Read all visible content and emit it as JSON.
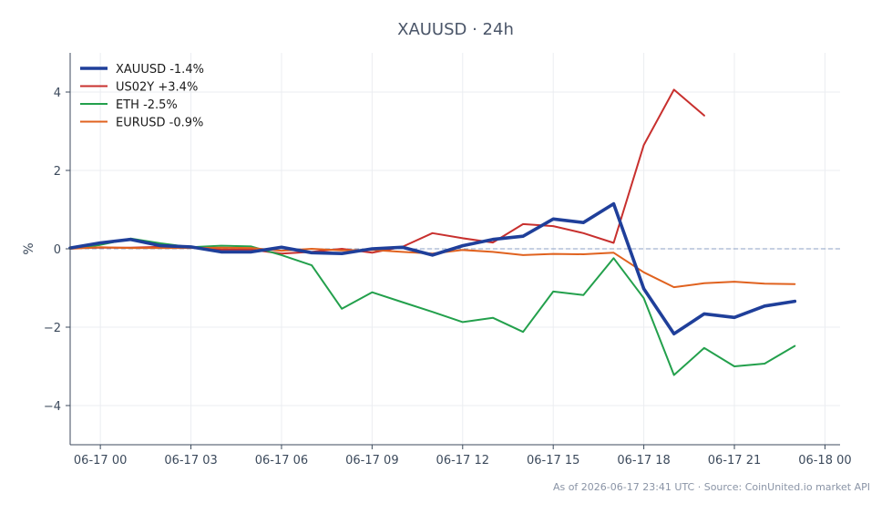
{
  "chart_data": {
    "type": "line",
    "title": "XAUUSD · 24h",
    "xlabel": "",
    "ylabel": "%",
    "ylim": [
      -5,
      5
    ],
    "xlim": [
      "2026-06-16T23:00",
      "2026-06-18T00:30"
    ],
    "x_ticks": [
      "06-17 00",
      "06-17 03",
      "06-17 06",
      "06-17 09",
      "06-17 12",
      "06-17 15",
      "06-17 18",
      "06-17 21",
      "06-18 00"
    ],
    "y_ticks": [
      "4",
      "2",
      "0",
      "−2",
      "−4"
    ],
    "y_tick_values": [
      4,
      2,
      0,
      -2,
      -4
    ],
    "grid": true,
    "legend_position": "top-left",
    "reference_line": {
      "y": 0,
      "style": "dashed"
    },
    "series": [
      {
        "name": "XAUUSD -1.4%",
        "color": "#1f3f9a",
        "emphasis": true,
        "points": [
          [
            "2026-06-16T23:00",
            0.02
          ],
          [
            "2026-06-17T00:00",
            0.15
          ],
          [
            "2026-06-17T01:00",
            0.24
          ],
          [
            "2026-06-17T02:00",
            0.08
          ],
          [
            "2026-06-17T03:00",
            0.05
          ],
          [
            "2026-06-17T04:00",
            -0.08
          ],
          [
            "2026-06-17T05:00",
            -0.08
          ],
          [
            "2026-06-17T06:00",
            0.04
          ],
          [
            "2026-06-17T07:00",
            -0.1
          ],
          [
            "2026-06-17T08:00",
            -0.12
          ],
          [
            "2026-06-17T09:00",
            0.0
          ],
          [
            "2026-06-17T10:00",
            0.04
          ],
          [
            "2026-06-17T11:00",
            -0.16
          ],
          [
            "2026-06-17T12:00",
            0.08
          ],
          [
            "2026-06-17T13:00",
            0.24
          ],
          [
            "2026-06-17T14:00",
            0.32
          ],
          [
            "2026-06-17T15:00",
            0.76
          ],
          [
            "2026-06-17T16:00",
            0.67
          ],
          [
            "2026-06-17T17:00",
            1.15
          ],
          [
            "2026-06-17T18:00",
            -1.02
          ],
          [
            "2026-06-17T19:00",
            -2.17
          ],
          [
            "2026-06-17T20:00",
            -1.66
          ],
          [
            "2026-06-17T21:00",
            -1.75
          ],
          [
            "2026-06-17T22:00",
            -1.46
          ],
          [
            "2026-06-17T23:00",
            -1.34
          ]
        ]
      },
      {
        "name": "US02Y +3.4%",
        "color": "#c8302e",
        "points": [
          [
            "2026-06-16T23:00",
            0.02
          ],
          [
            "2026-06-17T00:00",
            0.03
          ],
          [
            "2026-06-17T01:00",
            0.03
          ],
          [
            "2026-06-17T02:00",
            0.05
          ],
          [
            "2026-06-17T03:00",
            0.03
          ],
          [
            "2026-06-17T04:00",
            -0.02
          ],
          [
            "2026-06-17T05:00",
            -0.02
          ],
          [
            "2026-06-17T06:00",
            -0.12
          ],
          [
            "2026-06-17T07:00",
            -0.08
          ],
          [
            "2026-06-17T08:00",
            0.0
          ],
          [
            "2026-06-17T09:00",
            -0.1
          ],
          [
            "2026-06-17T10:00",
            0.05
          ],
          [
            "2026-06-17T11:00",
            0.4
          ],
          [
            "2026-06-17T12:00",
            0.27
          ],
          [
            "2026-06-17T13:00",
            0.16
          ],
          [
            "2026-06-17T14:00",
            0.63
          ],
          [
            "2026-06-17T15:00",
            0.58
          ],
          [
            "2026-06-17T16:00",
            0.4
          ],
          [
            "2026-06-17T17:00",
            0.15
          ],
          [
            "2026-06-17T18:00",
            2.65
          ],
          [
            "2026-06-17T19:00",
            4.06
          ],
          [
            "2026-06-17T20:00",
            3.4
          ]
        ]
      },
      {
        "name": "ETH -2.5%",
        "color": "#23a04c",
        "points": [
          [
            "2026-06-16T23:00",
            0.0
          ],
          [
            "2026-06-17T00:00",
            0.1
          ],
          [
            "2026-06-17T01:00",
            0.26
          ],
          [
            "2026-06-17T02:00",
            0.14
          ],
          [
            "2026-06-17T03:00",
            0.04
          ],
          [
            "2026-06-17T04:00",
            0.08
          ],
          [
            "2026-06-17T05:00",
            0.06
          ],
          [
            "2026-06-17T06:00",
            -0.16
          ],
          [
            "2026-06-17T07:00",
            -0.42
          ],
          [
            "2026-06-17T08:00",
            -1.53
          ],
          [
            "2026-06-17T09:00",
            -1.11
          ],
          [
            "2026-06-17T10:00",
            -1.36
          ],
          [
            "2026-06-17T11:00",
            -1.61
          ],
          [
            "2026-06-17T12:00",
            -1.87
          ],
          [
            "2026-06-17T13:00",
            -1.76
          ],
          [
            "2026-06-17T14:00",
            -2.12
          ],
          [
            "2026-06-17T15:00",
            -1.09
          ],
          [
            "2026-06-17T16:00",
            -1.18
          ],
          [
            "2026-06-17T17:00",
            -0.24
          ],
          [
            "2026-06-17T18:00",
            -1.26
          ],
          [
            "2026-06-17T19:00",
            -3.22
          ],
          [
            "2026-06-17T20:00",
            -2.53
          ],
          [
            "2026-06-17T21:00",
            -3.0
          ],
          [
            "2026-06-17T22:00",
            -2.93
          ],
          [
            "2026-06-17T23:00",
            -2.48
          ]
        ]
      },
      {
        "name": "EURUSD -0.9%",
        "color": "#e0621f",
        "points": [
          [
            "2026-06-16T23:00",
            0.0
          ],
          [
            "2026-06-17T00:00",
            0.04
          ],
          [
            "2026-06-17T01:00",
            0.02
          ],
          [
            "2026-06-17T02:00",
            0.02
          ],
          [
            "2026-06-17T03:00",
            0.02
          ],
          [
            "2026-06-17T04:00",
            0.03
          ],
          [
            "2026-06-17T05:00",
            0.02
          ],
          [
            "2026-06-17T06:00",
            -0.05
          ],
          [
            "2026-06-17T07:00",
            0.0
          ],
          [
            "2026-06-17T08:00",
            -0.04
          ],
          [
            "2026-06-17T09:00",
            -0.03
          ],
          [
            "2026-06-17T10:00",
            -0.08
          ],
          [
            "2026-06-17T11:00",
            -0.12
          ],
          [
            "2026-06-17T12:00",
            -0.03
          ],
          [
            "2026-06-17T13:00",
            -0.08
          ],
          [
            "2026-06-17T14:00",
            -0.16
          ],
          [
            "2026-06-17T15:00",
            -0.13
          ],
          [
            "2026-06-17T16:00",
            -0.14
          ],
          [
            "2026-06-17T17:00",
            -0.1
          ],
          [
            "2026-06-17T18:00",
            -0.6
          ],
          [
            "2026-06-17T19:00",
            -0.98
          ],
          [
            "2026-06-17T20:00",
            -0.88
          ],
          [
            "2026-06-17T21:00",
            -0.84
          ],
          [
            "2026-06-17T22:00",
            -0.89
          ],
          [
            "2026-06-17T23:00",
            -0.9
          ]
        ]
      }
    ],
    "footnote": "As of 2026-06-17 23:41 UTC · Source: CoinUnited.io market API"
  }
}
